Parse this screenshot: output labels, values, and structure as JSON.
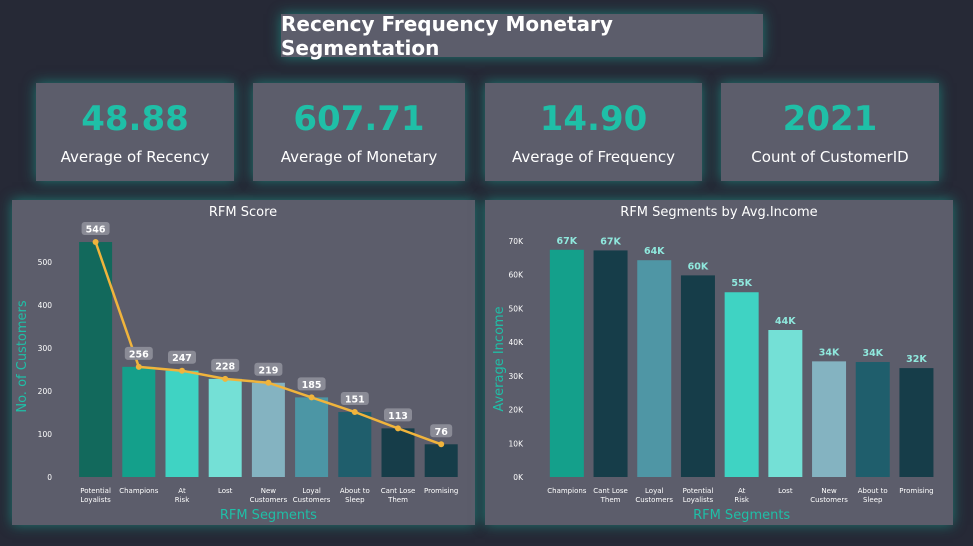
{
  "title": "Recency Frequency Monetary Segmentation",
  "kpis": [
    {
      "value": "48.88",
      "label": "Average of Recency"
    },
    {
      "value": "607.71",
      "label": "Average of Monetary"
    },
    {
      "value": "14.90",
      "label": "Average of Frequency"
    },
    {
      "value": "2021",
      "label": "Count of CustomerID"
    }
  ],
  "colors": {
    "accent": "#1fbfa7",
    "line": "#f0b43c",
    "panel": "#5c5d6b",
    "background": "#262936"
  },
  "chart_data": [
    {
      "type": "bar",
      "title": "RFM Score",
      "xlabel": "RFM Segments",
      "ylabel": "No. of Customers",
      "categories": [
        "Potential Loyalists",
        "Champions",
        "At Risk",
        "Lost",
        "New Customers",
        "Loyal Customers",
        "About to Sleep",
        "Cant Lose Them",
        "Promising"
      ],
      "values": [
        546,
        256,
        247,
        228,
        219,
        185,
        151,
        113,
        76
      ],
      "data_labels": [
        "546",
        "256",
        "247",
        "228",
        "219",
        "185",
        "151",
        "113",
        "76"
      ],
      "bar_colors": [
        "#12695c",
        "#14a08b",
        "#3fd3c3",
        "#74e0d6",
        "#84b3c1",
        "#4c96a5",
        "#1f5e6c",
        "#163d49",
        "#163d49"
      ],
      "line_overlay": true,
      "yticks": [
        0,
        100,
        200,
        300,
        400,
        500
      ],
      "ylim": [
        0,
        560
      ],
      "grid": false
    },
    {
      "type": "bar",
      "title": "RFM Segments by Avg.Income",
      "xlabel": "RFM Segments",
      "ylabel": "Average Income",
      "categories": [
        "Champions",
        "Cant Lose Them",
        "Loyal Customers",
        "Potential Loyalists",
        "At Risk",
        "Lost",
        "New Customers",
        "About to Sleep",
        "Promising"
      ],
      "values": [
        67400,
        67200,
        64300,
        59800,
        54800,
        43600,
        34300,
        34100,
        32300
      ],
      "data_labels": [
        "67K",
        "67K",
        "64K",
        "60K",
        "55K",
        "44K",
        "34K",
        "34K",
        "32K"
      ],
      "bar_colors": [
        "#14a08b",
        "#163d49",
        "#4f96a5",
        "#163d49",
        "#3fd3c3",
        "#74e0d6",
        "#84b3c1",
        "#1f5e6c",
        "#163d49"
      ],
      "yticks": [
        0,
        10000,
        20000,
        30000,
        40000,
        50000,
        60000,
        70000
      ],
      "ytick_labels": [
        "0K",
        "10K",
        "20K",
        "30K",
        "40K",
        "50K",
        "60K",
        "70K"
      ],
      "ylim": [
        0,
        70000
      ],
      "grid": false
    }
  ]
}
